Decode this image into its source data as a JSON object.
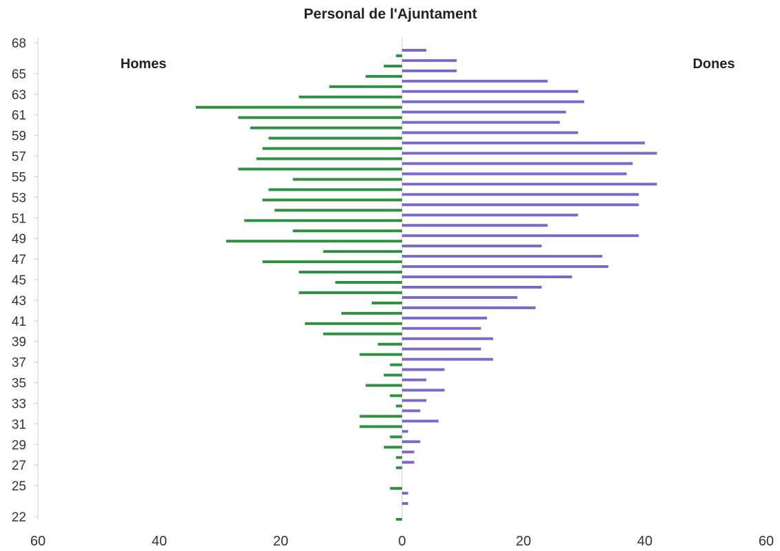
{
  "chart_data": {
    "type": "bar",
    "orientation": "horizontal",
    "title": "Personal de l'Ajuntament",
    "xlim": [
      -60,
      60
    ],
    "x_ticks": [
      -60,
      -40,
      -20,
      0,
      20,
      40,
      60
    ],
    "x_tick_labels": [
      "60",
      "40",
      "20",
      "0",
      "20",
      "40",
      "60"
    ],
    "y_min": 22,
    "y_max": 68,
    "y_tick_labels": [
      "22",
      "25",
      "27",
      "29",
      "31",
      "33",
      "35",
      "37",
      "39",
      "41",
      "43",
      "45",
      "47",
      "49",
      "51",
      "53",
      "55",
      "57",
      "59",
      "61",
      "63",
      "65",
      "68"
    ],
    "series": [
      {
        "name": "Homes",
        "color": "#2e9141",
        "label_position": "top-left",
        "points": [
          {
            "age": 22,
            "value": 1
          },
          {
            "age": 23,
            "value": 0
          },
          {
            "age": 24,
            "value": 0
          },
          {
            "age": 25,
            "value": 2
          },
          {
            "age": 26,
            "value": 0
          },
          {
            "age": 27,
            "value": 1
          },
          {
            "age": 28,
            "value": 1
          },
          {
            "age": 29,
            "value": 3
          },
          {
            "age": 30,
            "value": 2
          },
          {
            "age": 31,
            "value": 7
          },
          {
            "age": 32,
            "value": 7
          },
          {
            "age": 33,
            "value": 1
          },
          {
            "age": 34,
            "value": 2
          },
          {
            "age": 35,
            "value": 6
          },
          {
            "age": 36,
            "value": 3
          },
          {
            "age": 37,
            "value": 2
          },
          {
            "age": 38,
            "value": 7
          },
          {
            "age": 39,
            "value": 4
          },
          {
            "age": 40,
            "value": 13
          },
          {
            "age": 41,
            "value": 16
          },
          {
            "age": 42,
            "value": 10
          },
          {
            "age": 43,
            "value": 5
          },
          {
            "age": 44,
            "value": 17
          },
          {
            "age": 45,
            "value": 11
          },
          {
            "age": 46,
            "value": 17
          },
          {
            "age": 47,
            "value": 23
          },
          {
            "age": 48,
            "value": 13
          },
          {
            "age": 49,
            "value": 29
          },
          {
            "age": 50,
            "value": 18
          },
          {
            "age": 51,
            "value": 26
          },
          {
            "age": 52,
            "value": 21
          },
          {
            "age": 53,
            "value": 23
          },
          {
            "age": 54,
            "value": 22
          },
          {
            "age": 55,
            "value": 18
          },
          {
            "age": 56,
            "value": 27
          },
          {
            "age": 57,
            "value": 24
          },
          {
            "age": 58,
            "value": 23
          },
          {
            "age": 59,
            "value": 22
          },
          {
            "age": 60,
            "value": 25
          },
          {
            "age": 61,
            "value": 27
          },
          {
            "age": 62,
            "value": 34
          },
          {
            "age": 63,
            "value": 17
          },
          {
            "age": 64,
            "value": 12
          },
          {
            "age": 65,
            "value": 6
          },
          {
            "age": 66,
            "value": 3
          },
          {
            "age": 67,
            "value": 1
          }
        ]
      },
      {
        "name": "Dones",
        "color": "#7b68c9",
        "label_position": "top-right",
        "points": [
          {
            "age": 23,
            "value": 1
          },
          {
            "age": 24,
            "value": 1
          },
          {
            "age": 25,
            "value": 0
          },
          {
            "age": 26,
            "value": 0
          },
          {
            "age": 27,
            "value": 2
          },
          {
            "age": 28,
            "value": 2
          },
          {
            "age": 29,
            "value": 3
          },
          {
            "age": 30,
            "value": 1
          },
          {
            "age": 31,
            "value": 6
          },
          {
            "age": 32,
            "value": 3
          },
          {
            "age": 33,
            "value": 4
          },
          {
            "age": 34,
            "value": 7
          },
          {
            "age": 35,
            "value": 4
          },
          {
            "age": 36,
            "value": 7
          },
          {
            "age": 37,
            "value": 15
          },
          {
            "age": 38,
            "value": 13
          },
          {
            "age": 39,
            "value": 15
          },
          {
            "age": 40,
            "value": 13
          },
          {
            "age": 41,
            "value": 14
          },
          {
            "age": 42,
            "value": 22
          },
          {
            "age": 43,
            "value": 19
          },
          {
            "age": 44,
            "value": 23
          },
          {
            "age": 45,
            "value": 28
          },
          {
            "age": 46,
            "value": 34
          },
          {
            "age": 47,
            "value": 33
          },
          {
            "age": 48,
            "value": 23
          },
          {
            "age": 49,
            "value": 39
          },
          {
            "age": 50,
            "value": 24
          },
          {
            "age": 51,
            "value": 29
          },
          {
            "age": 52,
            "value": 39
          },
          {
            "age": 53,
            "value": 39
          },
          {
            "age": 54,
            "value": 42
          },
          {
            "age": 55,
            "value": 37
          },
          {
            "age": 56,
            "value": 38
          },
          {
            "age": 57,
            "value": 42
          },
          {
            "age": 58,
            "value": 40
          },
          {
            "age": 59,
            "value": 29
          },
          {
            "age": 60,
            "value": 26
          },
          {
            "age": 61,
            "value": 27
          },
          {
            "age": 62,
            "value": 30
          },
          {
            "age": 63,
            "value": 29
          },
          {
            "age": 64,
            "value": 24
          },
          {
            "age": 65,
            "value": 9
          },
          {
            "age": 66,
            "value": 9
          },
          {
            "age": 67,
            "value": 4
          }
        ]
      }
    ]
  }
}
